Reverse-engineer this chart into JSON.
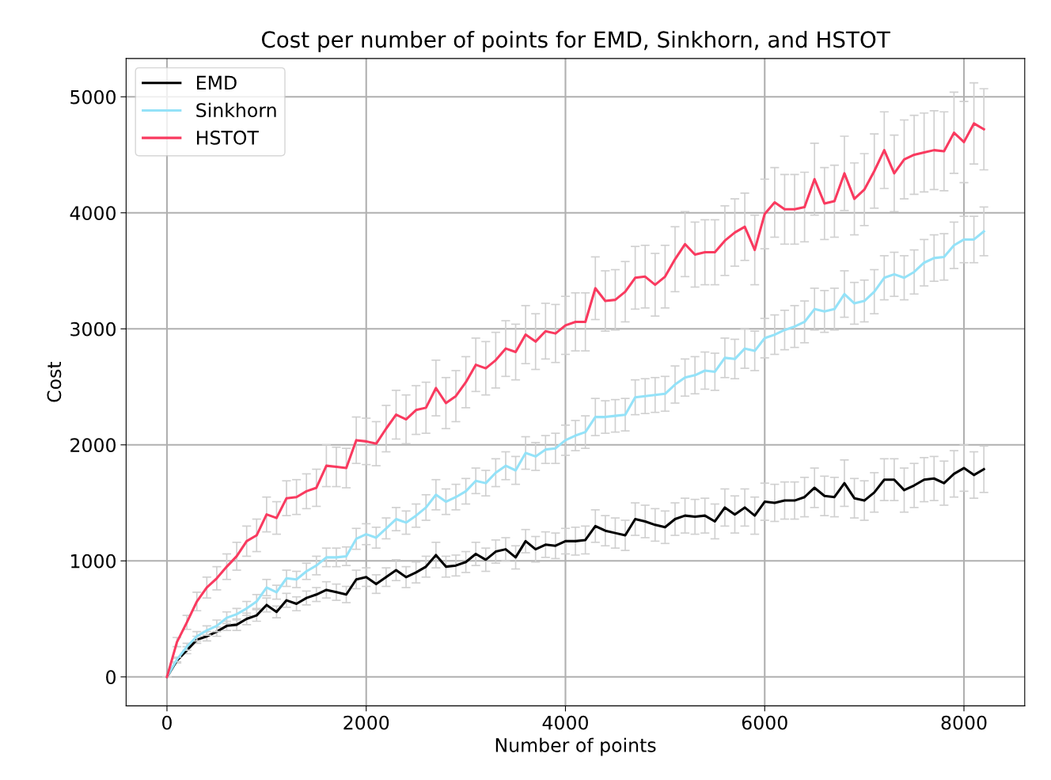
{
  "chart_data": {
    "type": "line",
    "title": "Cost per number of points for EMD, Sinkhorn, and HSTOT",
    "xlabel": "Number of points",
    "ylabel": "Cost",
    "x": [
      0,
      100,
      200,
      300,
      400,
      500,
      600,
      700,
      800,
      900,
      1000,
      1100,
      1200,
      1300,
      1400,
      1500,
      1600,
      1700,
      1800,
      1900,
      2000,
      2100,
      2200,
      2300,
      2400,
      2500,
      2600,
      2700,
      2800,
      2900,
      3000,
      3100,
      3200,
      3300,
      3400,
      3500,
      3600,
      3700,
      3800,
      3900,
      4000,
      4100,
      4200,
      4300,
      4400,
      4500,
      4600,
      4700,
      4800,
      4900,
      5000,
      5100,
      5200,
      5300,
      5400,
      5500,
      5600,
      5700,
      5800,
      5900,
      6000,
      6100,
      6200,
      6300,
      6400,
      6500,
      6600,
      6700,
      6800,
      6900,
      7000,
      7100,
      7200,
      7300,
      7400,
      7500,
      7600,
      7700,
      7800,
      7900,
      8000,
      8100,
      8200
    ],
    "series": [
      {
        "name": "EMD",
        "color": "#000000",
        "values": [
          0,
          140,
          230,
          320,
          350,
          390,
          440,
          450,
          500,
          530,
          620,
          560,
          660,
          630,
          680,
          710,
          750,
          730,
          710,
          840,
          860,
          800,
          860,
          920,
          860,
          900,
          950,
          1050,
          950,
          960,
          990,
          1060,
          1010,
          1080,
          1100,
          1030,
          1170,
          1100,
          1140,
          1130,
          1170,
          1170,
          1180,
          1300,
          1260,
          1240,
          1220,
          1360,
          1340,
          1310,
          1290,
          1360,
          1390,
          1380,
          1390,
          1340,
          1460,
          1400,
          1460,
          1390,
          1510,
          1500,
          1520,
          1520,
          1550,
          1630,
          1560,
          1550,
          1670,
          1540,
          1520,
          1590,
          1700,
          1700,
          1610,
          1650,
          1700,
          1710,
          1670,
          1750,
          1800,
          1740,
          1790
        ],
        "errors": [
          0,
          20,
          30,
          30,
          40,
          40,
          40,
          50,
          50,
          50,
          60,
          50,
          60,
          60,
          60,
          60,
          70,
          70,
          70,
          80,
          80,
          80,
          80,
          90,
          90,
          90,
          90,
          110,
          90,
          90,
          90,
          100,
          100,
          100,
          100,
          100,
          100,
          110,
          110,
          110,
          110,
          120,
          120,
          140,
          130,
          130,
          130,
          140,
          140,
          140,
          140,
          140,
          150,
          150,
          150,
          150,
          160,
          160,
          160,
          160,
          160,
          160,
          160,
          160,
          170,
          170,
          170,
          170,
          200,
          170,
          170,
          170,
          180,
          180,
          190,
          190,
          190,
          190,
          190,
          200,
          200,
          200,
          200
        ]
      },
      {
        "name": "Sinkhorn",
        "color": "#94e2f8",
        "values": [
          0,
          150,
          260,
          350,
          400,
          440,
          510,
          540,
          590,
          650,
          770,
          730,
          850,
          840,
          910,
          960,
          1030,
          1030,
          1040,
          1190,
          1230,
          1200,
          1280,
          1360,
          1330,
          1390,
          1460,
          1570,
          1510,
          1550,
          1600,
          1690,
          1670,
          1760,
          1820,
          1780,
          1930,
          1900,
          1960,
          1970,
          2040,
          2080,
          2110,
          2240,
          2240,
          2250,
          2260,
          2410,
          2420,
          2430,
          2440,
          2520,
          2580,
          2600,
          2640,
          2630,
          2750,
          2740,
          2830,
          2810,
          2920,
          2950,
          2990,
          3020,
          3060,
          3170,
          3150,
          3170,
          3300,
          3220,
          3240,
          3320,
          3440,
          3470,
          3440,
          3490,
          3570,
          3610,
          3620,
          3720,
          3770,
          3770,
          3840
        ],
        "errors": [
          0,
          20,
          30,
          40,
          40,
          50,
          50,
          50,
          60,
          60,
          70,
          60,
          70,
          70,
          70,
          80,
          80,
          80,
          80,
          90,
          90,
          90,
          90,
          100,
          100,
          100,
          110,
          130,
          110,
          110,
          110,
          110,
          110,
          120,
          120,
          120,
          140,
          120,
          120,
          130,
          130,
          130,
          140,
          160,
          140,
          140,
          140,
          150,
          150,
          150,
          150,
          160,
          160,
          160,
          160,
          160,
          170,
          170,
          170,
          170,
          170,
          170,
          170,
          180,
          180,
          180,
          180,
          180,
          200,
          180,
          180,
          190,
          190,
          190,
          190,
          190,
          200,
          200,
          200,
          200,
          200,
          200,
          210
        ]
      },
      {
        "name": "HSTOT",
        "color": "#f93a5f",
        "values": [
          0,
          300,
          470,
          650,
          770,
          850,
          950,
          1040,
          1170,
          1220,
          1400,
          1370,
          1540,
          1550,
          1600,
          1630,
          1820,
          1810,
          1800,
          2040,
          2030,
          2010,
          2140,
          2260,
          2220,
          2300,
          2320,
          2490,
          2360,
          2420,
          2540,
          2690,
          2660,
          2730,
          2830,
          2800,
          2950,
          2890,
          2980,
          2960,
          3030,
          3060,
          3060,
          3350,
          3240,
          3250,
          3320,
          3440,
          3450,
          3380,
          3450,
          3600,
          3730,
          3640,
          3660,
          3660,
          3760,
          3830,
          3880,
          3680,
          3990,
          4090,
          4030,
          4030,
          4050,
          4290,
          4080,
          4100,
          4340,
          4120,
          4200,
          4360,
          4540,
          4340,
          4460,
          4500,
          4520,
          4540,
          4530,
          4690,
          4610,
          4770,
          4720
        ],
        "errors": [
          0,
          40,
          60,
          80,
          90,
          100,
          110,
          120,
          130,
          140,
          150,
          140,
          150,
          150,
          150,
          160,
          180,
          170,
          170,
          200,
          200,
          190,
          200,
          210,
          210,
          210,
          220,
          240,
          220,
          220,
          220,
          230,
          230,
          240,
          240,
          240,
          250,
          240,
          240,
          250,
          250,
          250,
          250,
          270,
          260,
          260,
          260,
          270,
          270,
          270,
          270,
          280,
          280,
          280,
          280,
          280,
          300,
          290,
          290,
          300,
          300,
          300,
          300,
          300,
          300,
          310,
          310,
          310,
          320,
          310,
          310,
          320,
          330,
          330,
          340,
          340,
          340,
          340,
          340,
          350,
          350,
          350,
          350
        ]
      }
    ],
    "xlim": [
      -410,
      8610
    ],
    "ylim": [
      -250,
      5330
    ],
    "xticks": [
      0,
      2000,
      4000,
      6000,
      8000
    ],
    "yticks": [
      0,
      1000,
      2000,
      3000,
      4000,
      5000
    ],
    "grid": true,
    "legend": "top left"
  }
}
